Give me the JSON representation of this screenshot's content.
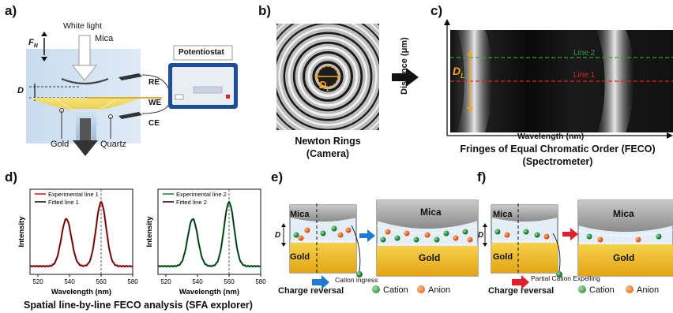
{
  "panels": {
    "a": {
      "label": "a)",
      "white_light": "White light",
      "force": "F",
      "force_sub": "N",
      "mica": "Mica",
      "distance": "D",
      "gold": "Gold",
      "quartz": "Quartz",
      "potentiostat": "Potentiostat",
      "re": "RE",
      "we": "WE",
      "ce": "CE"
    },
    "b": {
      "label": "b)",
      "dl": "D",
      "dl_sub": "L",
      "caption_line1": "Newton Rings",
      "caption_line2": "(Camera)"
    },
    "c": {
      "label": "c)",
      "ylabel": "Distance (μm)",
      "xlabel": "Wavelength (nm)",
      "dl": "D",
      "dl_sub": "L",
      "line2": "Line 2",
      "line1": "Line 1",
      "caption_line1": "Fringes of Equal Chromatic Order (FECO)",
      "caption_line2": "(Spectrometer)"
    },
    "d": {
      "label": "d)",
      "caption": "Spatial line-by-line FECO analysis (SFA explorer)"
    },
    "e": {
      "label": "e)",
      "mica": "Mica",
      "gold": "Gold",
      "distance": "D",
      "cation_ingress": "Cation ingress",
      "charge_reversal": "Charge reversal",
      "cation": "Cation",
      "anion": "Anion"
    },
    "f": {
      "label": "f)",
      "mica": "Mica",
      "gold": "Gold",
      "distance": "D",
      "partial": "Partial Cation Expelling",
      "charge_reversal": "Charge reversal",
      "cation": "Cation",
      "anion": "Anion"
    }
  },
  "colors": {
    "red": "#e02020",
    "green": "#1a8a3a",
    "gold": "#e8b21c",
    "blue_arrow": "#1f7bd0",
    "orange": "#f4a11a",
    "dashed_green": "#2e9e3a",
    "dashed_red": "#e0202c"
  },
  "chart_data": [
    {
      "type": "line",
      "xlabel": "Wavelength (nm)",
      "ylabel": "Intensity",
      "xlim": [
        515,
        580
      ],
      "xticks": [
        "520",
        "540",
        "560",
        "580"
      ],
      "series": [
        {
          "name": "Experimental line 1",
          "color": "#e02020",
          "peaks": [
            538,
            560
          ]
        },
        {
          "name": "Fitted line 1",
          "color": "#111111",
          "peaks": [
            538,
            560
          ]
        }
      ]
    },
    {
      "type": "line",
      "xlabel": "Wavelength (nm)",
      "ylabel": "Intensity",
      "xlim": [
        515,
        580
      ],
      "xticks": [
        "520",
        "540",
        "560",
        "580"
      ],
      "series": [
        {
          "name": "Experimental line 2",
          "color": "#1a8a3a",
          "peaks": [
            537,
            560
          ]
        },
        {
          "name": "Fitted line 2",
          "color": "#111111",
          "peaks": [
            537,
            560
          ]
        }
      ]
    }
  ]
}
